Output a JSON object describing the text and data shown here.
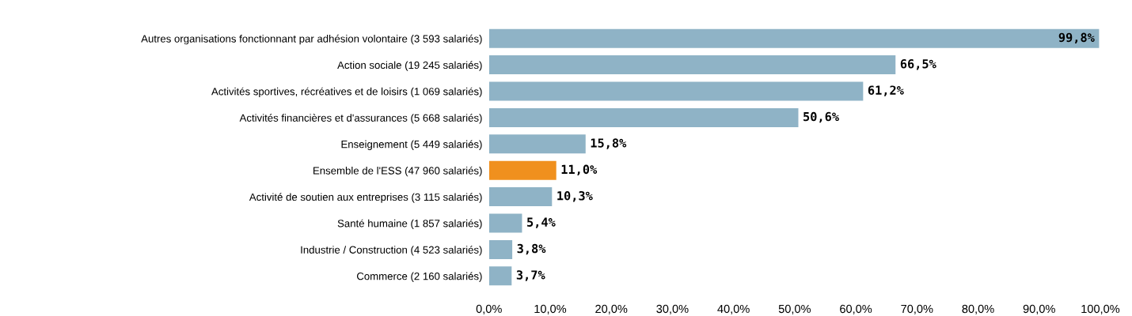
{
  "chart_data": {
    "type": "bar",
    "orientation": "horizontal",
    "categories": [
      "Autres organisations fonctionnant par adhésion volontaire (3 593 salariés)",
      "Action sociale (19 245 salariés)",
      "Activités sportives, récréatives et de loisirs (1 069 salariés)",
      "Activités financières et d'assurances (5 668 salariés)",
      "Enseignement (5 449 salariés)",
      "Ensemble de l'ESS (47 960 salariés)",
      "Activité de soutien aux entreprises (3 115 salariés)",
      "Santé humaine (1 857 salariés)",
      "Industrie / Construction (4 523 salariés)",
      "Commerce (2 160 salariés)"
    ],
    "values": [
      99.8,
      66.5,
      61.2,
      50.6,
      15.8,
      11.0,
      10.3,
      5.4,
      3.8,
      3.7
    ],
    "colors": [
      "#8fb3c6",
      "#8fb3c6",
      "#8fb3c6",
      "#8fb3c6",
      "#8fb3c6",
      "#f0901e",
      "#8fb3c6",
      "#8fb3c6",
      "#8fb3c6",
      "#8fb3c6"
    ],
    "value_labels": [
      "99,8%",
      "66,5%",
      "61,2%",
      "50,6%",
      "15,8%",
      "11,0%",
      "10,3%",
      "5,4%",
      "3,8%",
      "3,7%"
    ],
    "xlim": [
      0,
      100
    ],
    "xticks": [
      {
        "value": 0,
        "label": "0,0%"
      },
      {
        "value": 10,
        "label": "10,0%"
      },
      {
        "value": 20,
        "label": "20,0%"
      },
      {
        "value": 30,
        "label": "30,0%"
      },
      {
        "value": 40,
        "label": "40,0%"
      },
      {
        "value": 50,
        "label": "50,0%"
      },
      {
        "value": 60,
        "label": "60,0%"
      },
      {
        "value": 70,
        "label": "70,0%"
      },
      {
        "value": 80,
        "label": "80,0%"
      },
      {
        "value": 90,
        "label": "90,0%"
      },
      {
        "value": 100,
        "label": "100,0%"
      }
    ],
    "grid": false,
    "legend": false
  }
}
